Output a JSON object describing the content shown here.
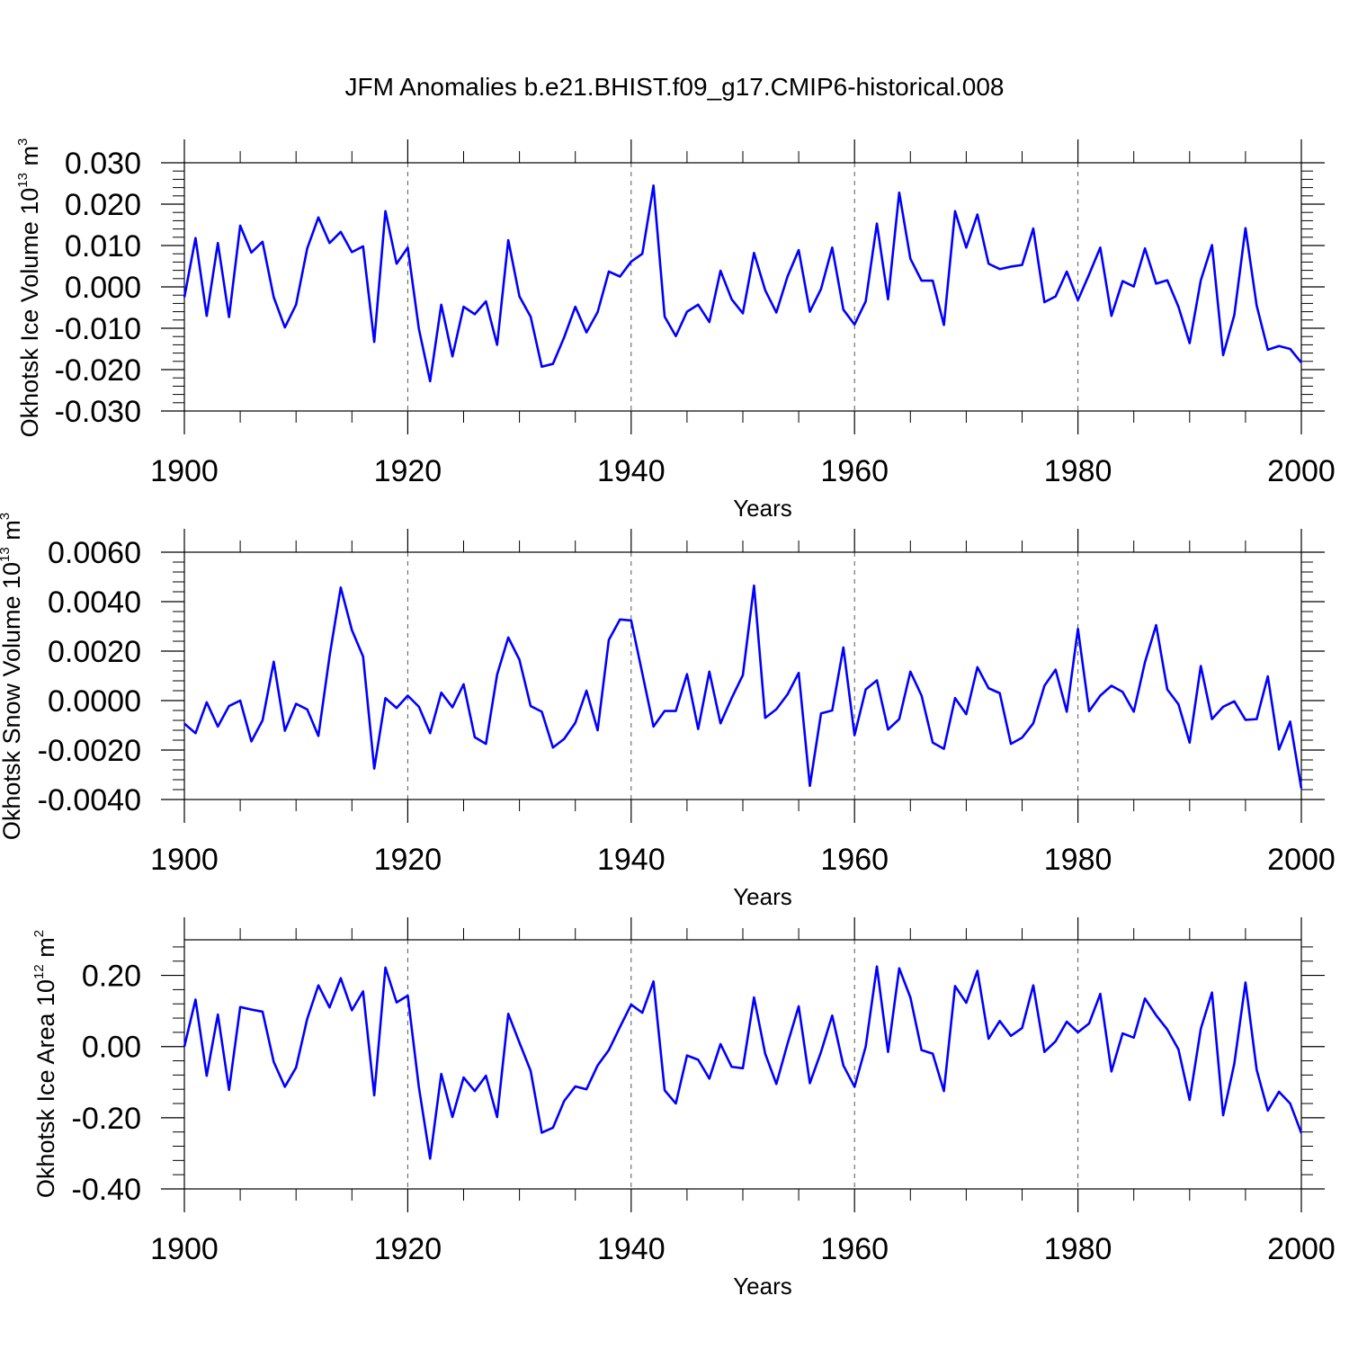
{
  "figure_title": "JFM Anomalies b.e21.BHIST.f09_g17.CMIP6-historical.008",
  "colors": {
    "line": "#0000ff",
    "axes": "#000000",
    "grid": "#555555"
  },
  "chart_data": [
    {
      "type": "line",
      "title": "JFM Anomalies b.e21.BHIST.f09_g17.CMIP6-historical.008",
      "xlabel": "Years",
      "ylabel": {
        "text": "Okhotsk Ice Volume 10",
        "sup1": "13",
        "mid": " m",
        "sup2": "3"
      },
      "xlim": [
        1900,
        2000
      ],
      "ylim": [
        -0.03,
        0.03
      ],
      "xticks": [
        1900,
        1920,
        1940,
        1960,
        1980,
        2000
      ],
      "xtick_labels": [
        "1900",
        "1920",
        "1940",
        "1960",
        "1980",
        "2000"
      ],
      "yticks": [
        0.03,
        0.02,
        0.01,
        0.0,
        -0.01,
        -0.02,
        -0.03
      ],
      "ytick_labels": [
        "0.030",
        "0.020",
        "0.010",
        "0.000",
        "-0.010",
        "-0.020",
        "-0.030"
      ],
      "grid": "vertical dashed",
      "x_start": 1900,
      "values": [
        -0.0025,
        0.0118,
        -0.007,
        0.0106,
        -0.0073,
        0.0148,
        0.0083,
        0.0109,
        -0.0025,
        -0.0098,
        -0.0043,
        0.0093,
        0.0168,
        0.0106,
        0.0133,
        0.0084,
        0.0098,
        -0.0133,
        0.0183,
        0.0056,
        0.0095,
        -0.0102,
        -0.0228,
        -0.0043,
        -0.0168,
        -0.0048,
        -0.0066,
        -0.0035,
        -0.014,
        0.0113,
        -0.0023,
        -0.0072,
        -0.0193,
        -0.0186,
        -0.0122,
        -0.0048,
        -0.011,
        -0.0061,
        0.0037,
        0.0025,
        0.0061,
        0.008,
        0.0245,
        -0.0072,
        -0.0119,
        -0.006,
        -0.0043,
        -0.0085,
        0.0039,
        -0.003,
        -0.0064,
        0.0082,
        -0.0008,
        -0.0062,
        0.0025,
        0.0089,
        -0.006,
        -0.0005,
        0.0095,
        -0.0055,
        -0.0091,
        -0.0035,
        0.0153,
        -0.003,
        0.0228,
        0.0068,
        0.0015,
        0.0015,
        -0.0092,
        0.0183,
        0.0095,
        0.0175,
        0.0056,
        0.0043,
        0.0049,
        0.0053,
        0.0141,
        -0.0037,
        -0.0023,
        0.0037,
        -0.0032,
        0.003,
        0.0095,
        -0.007,
        0.0014,
        0.0001,
        0.0093,
        0.0008,
        0.0016,
        -0.0048,
        -0.0136,
        0.0016,
        0.0101,
        -0.0165,
        -0.0068,
        0.0142,
        -0.0045,
        -0.0152,
        -0.0143,
        -0.015,
        -0.0183
      ]
    },
    {
      "type": "line",
      "xlabel": "Years",
      "ylabel": {
        "text": "Okhotsk Snow Volume 10",
        "sup1": "13",
        "mid": " m",
        "sup2": "3"
      },
      "xlim": [
        1900,
        2000
      ],
      "ylim": [
        -0.004,
        0.006
      ],
      "xticks": [
        1900,
        1920,
        1940,
        1960,
        1980,
        2000
      ],
      "xtick_labels": [
        "1900",
        "1920",
        "1940",
        "1960",
        "1980",
        "2000"
      ],
      "yticks": [
        0.006,
        0.004,
        0.002,
        0.0,
        -0.002,
        -0.004
      ],
      "ytick_labels": [
        "0.0060",
        "0.0040",
        "0.0020",
        "0.0000",
        "-0.0020",
        "-0.0040"
      ],
      "grid": "vertical dashed",
      "x_start": 1900,
      "values": [
        -0.00093,
        -0.00132,
        -7e-05,
        -0.00105,
        -0.00022,
        0.0,
        -0.00165,
        -0.0008,
        0.00157,
        -0.00122,
        -0.00013,
        -0.00036,
        -0.00143,
        0.0018,
        0.00457,
        0.00285,
        0.00178,
        -0.00275,
        0.0001,
        -0.0003,
        0.0002,
        -0.00025,
        -0.00132,
        0.00032,
        -0.00027,
        0.00066,
        -0.00148,
        -0.00175,
        0.00105,
        0.00255,
        0.00165,
        -0.00022,
        -0.00045,
        -0.0019,
        -0.00155,
        -0.0009,
        0.0004,
        -0.0012,
        0.00245,
        0.00328,
        0.00324,
        0.0011,
        -0.00105,
        -0.00042,
        -0.00042,
        0.00107,
        -0.00115,
        0.00117,
        -0.00092,
        0.0001,
        0.00103,
        0.00465,
        -0.0007,
        -0.00035,
        0.00025,
        0.00112,
        -0.00345,
        -0.00052,
        -0.0004,
        0.00215,
        -0.0014,
        0.00045,
        0.00082,
        -0.00117,
        -0.00075,
        0.00117,
        0.0002,
        -0.0017,
        -0.00195,
        0.0001,
        -0.00055,
        0.00135,
        0.0005,
        0.0003,
        -0.00175,
        -0.0015,
        -0.00092,
        0.0006,
        0.00125,
        -0.00045,
        0.0029,
        -0.00043,
        0.0002,
        0.0006,
        0.00035,
        -0.00045,
        0.00155,
        0.00305,
        0.00045,
        -0.00015,
        -0.0017,
        0.0014,
        -0.00075,
        -0.00025,
        -3e-05,
        -0.00078,
        -0.00075,
        0.00098,
        -0.00198,
        -0.00085,
        -0.00355
      ]
    },
    {
      "type": "line",
      "xlabel": "Years",
      "ylabel": {
        "text": "Okhotsk Ice Area 10",
        "sup1": "12",
        "mid": " m",
        "sup2": "2"
      },
      "xlim": [
        1900,
        2000
      ],
      "ylim": [
        -0.4,
        0.3
      ],
      "xticks": [
        1900,
        1920,
        1940,
        1960,
        1980,
        2000
      ],
      "xtick_labels": [
        "1900",
        "1920",
        "1940",
        "1960",
        "1980",
        "2000"
      ],
      "yticks": [
        0.2,
        0.0,
        -0.2,
        -0.4
      ],
      "ytick_labels": [
        "0.20",
        "0.00",
        "-0.20",
        "-0.40"
      ],
      "grid": "vertical dashed",
      "x_start": 1900,
      "values": [
        0.0,
        0.132,
        -0.082,
        0.09,
        -0.122,
        0.111,
        0.104,
        0.098,
        -0.043,
        -0.113,
        -0.059,
        0.078,
        0.172,
        0.11,
        0.192,
        0.102,
        0.155,
        -0.137,
        0.222,
        0.124,
        0.143,
        -0.115,
        -0.315,
        -0.077,
        -0.198,
        -0.087,
        -0.125,
        -0.082,
        -0.198,
        0.092,
        0.011,
        -0.068,
        -0.242,
        -0.228,
        -0.153,
        -0.112,
        -0.12,
        -0.053,
        -0.01,
        0.055,
        0.118,
        0.095,
        0.183,
        -0.123,
        -0.16,
        -0.025,
        -0.037,
        -0.09,
        0.007,
        -0.057,
        -0.061,
        0.138,
        -0.02,
        -0.105,
        0.008,
        0.113,
        -0.103,
        -0.015,
        0.087,
        -0.053,
        -0.113,
        0.0,
        0.225,
        -0.015,
        0.22,
        0.138,
        -0.01,
        -0.02,
        -0.125,
        0.17,
        0.123,
        0.213,
        0.022,
        0.072,
        0.03,
        0.052,
        0.172,
        -0.015,
        0.015,
        0.07,
        0.04,
        0.065,
        0.148,
        -0.07,
        0.037,
        0.025,
        0.135,
        0.088,
        0.048,
        -0.008,
        -0.15,
        0.05,
        0.152,
        -0.193,
        -0.048,
        0.18,
        -0.065,
        -0.18,
        -0.127,
        -0.16,
        -0.243
      ]
    }
  ]
}
